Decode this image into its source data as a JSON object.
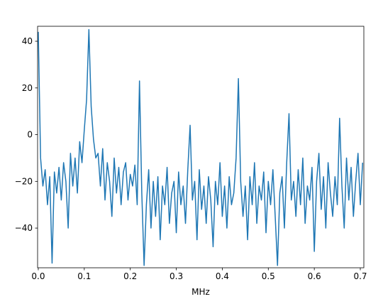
{
  "chart_data": {
    "type": "line",
    "xlabel": "MHz",
    "x": [
      0,
      0.005,
      0.01,
      0.015,
      0.02,
      0.025,
      0.03,
      0.035,
      0.04,
      0.045,
      0.05,
      0.055,
      0.06,
      0.065,
      0.07,
      0.075,
      0.08,
      0.085,
      0.09,
      0.095,
      0.1,
      0.105,
      0.11,
      0.115,
      0.12,
      0.125,
      0.13,
      0.135,
      0.14,
      0.145,
      0.15,
      0.155,
      0.16,
      0.165,
      0.17,
      0.175,
      0.18,
      0.185,
      0.19,
      0.195,
      0.2,
      0.205,
      0.21,
      0.215,
      0.22,
      0.225,
      0.23,
      0.235,
      0.24,
      0.245,
      0.25,
      0.255,
      0.26,
      0.265,
      0.27,
      0.275,
      0.28,
      0.285,
      0.29,
      0.295,
      0.3,
      0.305,
      0.31,
      0.315,
      0.32,
      0.325,
      0.33,
      0.335,
      0.34,
      0.345,
      0.35,
      0.355,
      0.36,
      0.365,
      0.37,
      0.375,
      0.38,
      0.385,
      0.39,
      0.395,
      0.4,
      0.405,
      0.41,
      0.415,
      0.42,
      0.425,
      0.43,
      0.435,
      0.44,
      0.445,
      0.45,
      0.455,
      0.46,
      0.465,
      0.47,
      0.475,
      0.48,
      0.485,
      0.49,
      0.495,
      0.5,
      0.505,
      0.51,
      0.515,
      0.52,
      0.525,
      0.53,
      0.535,
      0.54,
      0.545,
      0.55,
      0.555,
      0.56,
      0.565,
      0.57,
      0.575,
      0.58,
      0.585,
      0.59,
      0.595,
      0.6,
      0.605,
      0.61,
      0.615,
      0.62,
      0.625,
      0.63,
      0.635,
      0.64,
      0.645,
      0.65,
      0.655,
      0.66,
      0.665,
      0.67,
      0.675,
      0.68,
      0.685,
      0.69,
      0.695,
      0.7,
      0.705
    ],
    "series": [
      {
        "color": "#1f77b4",
        "values": [
          44,
          -10,
          -22,
          -15,
          -30,
          -18,
          -55,
          -16,
          -25,
          -14,
          -28,
          -12,
          -20,
          -40,
          -8,
          -22,
          -10,
          -25,
          -3,
          -12,
          2,
          15,
          45,
          12,
          -2,
          -10,
          -8,
          -22,
          -6,
          -28,
          -12,
          -20,
          -35,
          -10,
          -25,
          -14,
          -30,
          -16,
          -12,
          -28,
          -17,
          -22,
          -13,
          -30,
          23,
          -25,
          -56,
          -30,
          -15,
          -40,
          -20,
          -35,
          -18,
          -45,
          -22,
          -30,
          -14,
          -38,
          -25,
          -20,
          -42,
          -16,
          -30,
          -22,
          -38,
          -15,
          4,
          -28,
          -20,
          -45,
          -15,
          -32,
          -22,
          -38,
          -18,
          -28,
          -48,
          -20,
          -30,
          -12,
          -35,
          -22,
          -40,
          -18,
          -30,
          -25,
          -10,
          24,
          -20,
          -35,
          -22,
          -45,
          -18,
          -30,
          -12,
          -38,
          -22,
          -28,
          -16,
          -42,
          -20,
          -30,
          -15,
          -35,
          -56,
          -25,
          -18,
          -40,
          -12,
          9,
          -28,
          -20,
          -35,
          -15,
          -30,
          -10,
          -38,
          -22,
          -28,
          -14,
          -50,
          -20,
          -8,
          -32,
          -18,
          -40,
          -12,
          -25,
          -35,
          -18,
          -30,
          7,
          -22,
          -40,
          -10,
          -28,
          -14,
          -35,
          -20,
          -8,
          -30,
          -12
        ]
      }
    ],
    "xlim": [
      -0.0015,
      0.7077
    ],
    "ylim": [
      -57,
      46.4
    ],
    "xticks": [
      {
        "value": 0,
        "label": "0.0"
      },
      0.1,
      0.2,
      0.3,
      0.4,
      0.5,
      0.6,
      0.7
    ],
    "yticks": [
      {
        "value": -40,
        "label": "−40"
      },
      {
        "value": -20,
        "label": "−20"
      },
      0,
      20,
      40
    ]
  }
}
